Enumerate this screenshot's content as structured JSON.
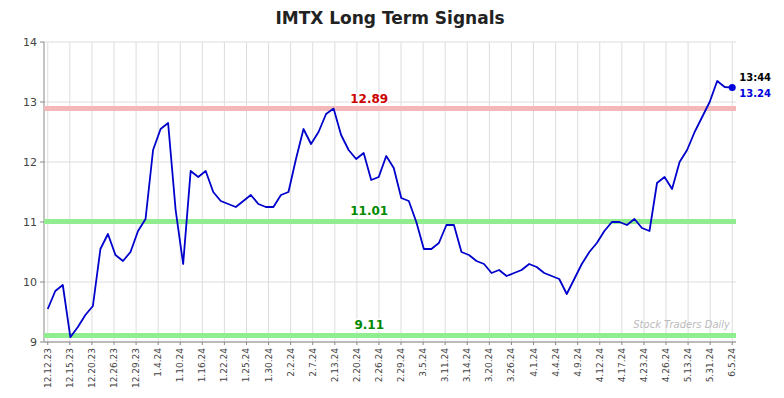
{
  "chart_data": {
    "type": "line",
    "title": "IMTX Long Term Signals",
    "x": [
      0,
      1,
      2,
      3,
      4,
      5,
      6,
      7,
      8,
      9,
      10,
      11,
      12,
      13,
      14,
      15,
      16,
      17,
      18,
      19,
      20,
      21,
      22,
      23,
      24,
      25,
      26,
      27,
      28,
      29,
      30,
      31,
      32,
      33,
      34,
      35,
      36,
      37,
      38,
      39,
      40,
      41,
      42,
      43,
      44,
      45,
      46,
      47,
      48,
      49,
      50,
      51,
      52,
      53,
      54,
      55,
      56,
      57,
      58,
      59,
      60,
      61,
      62,
      63,
      64,
      65,
      66,
      67,
      68,
      69,
      70,
      71,
      72,
      73,
      74,
      75,
      76,
      77,
      78,
      79,
      80,
      81,
      82,
      83,
      84,
      85,
      86,
      87,
      88,
      89,
      90,
      91
    ],
    "values": [
      9.55,
      9.85,
      9.95,
      9.08,
      9.25,
      9.45,
      9.6,
      10.55,
      10.8,
      10.45,
      10.35,
      10.5,
      10.85,
      11.05,
      12.2,
      12.55,
      12.65,
      11.2,
      10.3,
      11.85,
      11.75,
      11.85,
      11.5,
      11.35,
      11.3,
      11.25,
      11.35,
      11.45,
      11.3,
      11.25,
      11.25,
      11.45,
      11.5,
      12.05,
      12.55,
      12.3,
      12.5,
      12.8,
      12.89,
      12.45,
      12.2,
      12.05,
      12.15,
      11.7,
      11.75,
      12.1,
      11.9,
      11.4,
      11.35,
      11.0,
      10.55,
      10.55,
      10.65,
      10.95,
      10.95,
      10.5,
      10.45,
      10.35,
      10.3,
      10.15,
      10.2,
      10.1,
      10.15,
      10.2,
      10.3,
      10.25,
      10.15,
      10.1,
      10.05,
      9.8,
      10.05,
      10.3,
      10.5,
      10.65,
      10.85,
      11.0,
      11.0,
      10.95,
      11.05,
      10.9,
      10.85,
      11.65,
      11.75,
      11.55,
      12.0,
      12.2,
      12.5,
      12.75,
      13.0,
      13.35,
      13.25,
      13.24
    ],
    "color": "#0000cc",
    "xlim": [
      -0.5,
      91.5
    ],
    "xticks": [
      {
        "value": 0,
        "label": "12.12.23"
      },
      {
        "value": 2.935483870967742,
        "label": "12.15.23"
      },
      {
        "value": 5.870967741935484,
        "label": "12.20.23"
      },
      {
        "value": 8.806451612903226,
        "label": "12.26.23"
      },
      {
        "value": 11.741935483870968,
        "label": "12.29.23"
      },
      {
        "value": 14.67741935483871,
        "label": "1.4.24"
      },
      {
        "value": 17.612903225806452,
        "label": "1.10.24"
      },
      {
        "value": 20.548387096774196,
        "label": "1.16.24"
      },
      {
        "value": 23.483870967741936,
        "label": "1.22.24"
      },
      {
        "value": 26.419354838709676,
        "label": "1.25.24"
      },
      {
        "value": 29.35483870967742,
        "label": "1.30.24"
      },
      {
        "value": 32.29032258064516,
        "label": "2.2.24"
      },
      {
        "value": 35.225806451612904,
        "label": "2.7.24"
      },
      {
        "value": 38.16129032258065,
        "label": "2.13.24"
      },
      {
        "value": 41.096774193548384,
        "label": "2.20.24"
      },
      {
        "value": 44.03225806451613,
        "label": "2.26.24"
      },
      {
        "value": 46.96774193548387,
        "label": "2.29.24"
      },
      {
        "value": 49.903225806451616,
        "label": "3.5.24"
      },
      {
        "value": 52.83870967741935,
        "label": "3.11.24"
      },
      {
        "value": 55.774193548387096,
        "label": "3.14.24"
      },
      {
        "value": 58.70967741935484,
        "label": "3.20.24"
      },
      {
        "value": 61.645161290322584,
        "label": "3.26.24"
      },
      {
        "value": 64.58064516129032,
        "label": "4.1.24"
      },
      {
        "value": 67.51612903225806,
        "label": "4.4.24"
      },
      {
        "value": 70.45161290322581,
        "label": "4.9.24"
      },
      {
        "value": 73.38709677419355,
        "label": "4.12.24"
      },
      {
        "value": 76.3225806451613,
        "label": "4.17.24"
      },
      {
        "value": 79.25806451612904,
        "label": "4.23.24"
      },
      {
        "value": 82.19354838709677,
        "label": "4.26.24"
      },
      {
        "value": 85.12903225806451,
        "label": "5.13.24"
      },
      {
        "value": 88.06451612903226,
        "label": "5.31.24"
      },
      {
        "value": 91,
        "label": "6.5.24"
      }
    ],
    "ylim": [
      9.0,
      14.0
    ],
    "yticks": [
      9,
      10,
      11,
      12,
      13,
      14
    ],
    "grid": true,
    "reference_lines": [
      {
        "value": 12.89,
        "label": "12.89",
        "color": "#f5b8b8",
        "label_color": "#cc0000"
      },
      {
        "value": 11.01,
        "label": "11.01",
        "color": "#90ee90",
        "label_color": "#008800"
      },
      {
        "value": 9.11,
        "label": "9.11",
        "color": "#90ee90",
        "label_color": "#008800"
      }
    ],
    "annotations": [
      {
        "text": "13:44",
        "x": 91,
        "y": 13.24,
        "color": "#000000"
      },
      {
        "text": "13.24",
        "x": 91,
        "y": 13.24,
        "color": "#0000dd"
      },
      {
        "text": "Stock Traders Daily",
        "color": "#bbbbbb"
      }
    ]
  }
}
